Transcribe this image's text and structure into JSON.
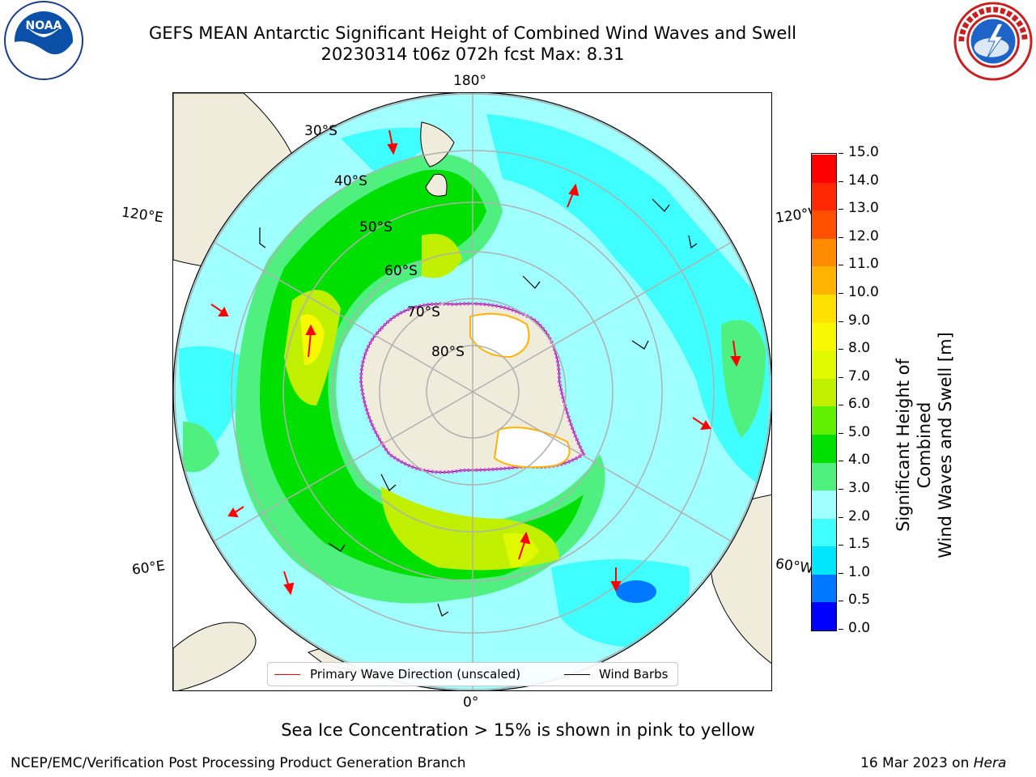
{
  "header": {
    "title_line1": "GEFS MEAN Antarctic Significant Height of Combined Wind Waves and Swell",
    "title_line2": "20230314 t06z 072h fcst   Max: 8.31"
  },
  "logos": {
    "left": {
      "name": "noaa-logo",
      "text": "NOAA"
    },
    "right": {
      "name": "nws-logo",
      "text": "NATIONAL WEATHER SERVICE"
    }
  },
  "map": {
    "projection": "south-polar-stereographic",
    "longitude_labels": {
      "top": "180°",
      "bottom": "0°",
      "upper_left": "120°E",
      "upper_right": "120°W",
      "lower_left": "60°E",
      "lower_right": "60°W"
    },
    "latitude_labels": [
      "30°S",
      "40°S",
      "50°S",
      "60°S",
      "70°S",
      "80°S"
    ],
    "colors": {
      "land": "#efecdc",
      "sea_ice": "#e040e0",
      "grid": "#b0b0b0",
      "wave_arrow": "#ff0000",
      "wind_barb": "#000000"
    },
    "legend": {
      "primary_wave_direction": "Primary Wave Direction (unscaled)",
      "wind_barbs": "Wind Barbs"
    }
  },
  "colorbar": {
    "label_line1": "Significant Height of Combined",
    "label_line2": "Wind Waves and Swell [m]",
    "ticks": [
      "0.0",
      "0.5",
      "1.0",
      "1.5",
      "2.0",
      "3.0",
      "4.0",
      "5.0",
      "6.0",
      "7.0",
      "8.0",
      "9.0",
      "10.0",
      "11.0",
      "12.0",
      "13.0",
      "14.0",
      "15.0"
    ],
    "colors": [
      "#0000ff",
      "#0078ff",
      "#00e6ff",
      "#40ffff",
      "#a0ffff",
      "#50f080",
      "#00e000",
      "#60f000",
      "#c0f000",
      "#e0f800",
      "#f8f800",
      "#ffe000",
      "#ffb400",
      "#ff8c00",
      "#ff5000",
      "#ff2800",
      "#ff0000"
    ]
  },
  "caption": "Sea Ice Concentration > 15% is shown in pink to yellow",
  "footer": {
    "left": "NCEP/EMC/Verification Post Processing Product Generation Branch",
    "right_date": "16 Mar 2023 on ",
    "right_host": "Hera"
  }
}
